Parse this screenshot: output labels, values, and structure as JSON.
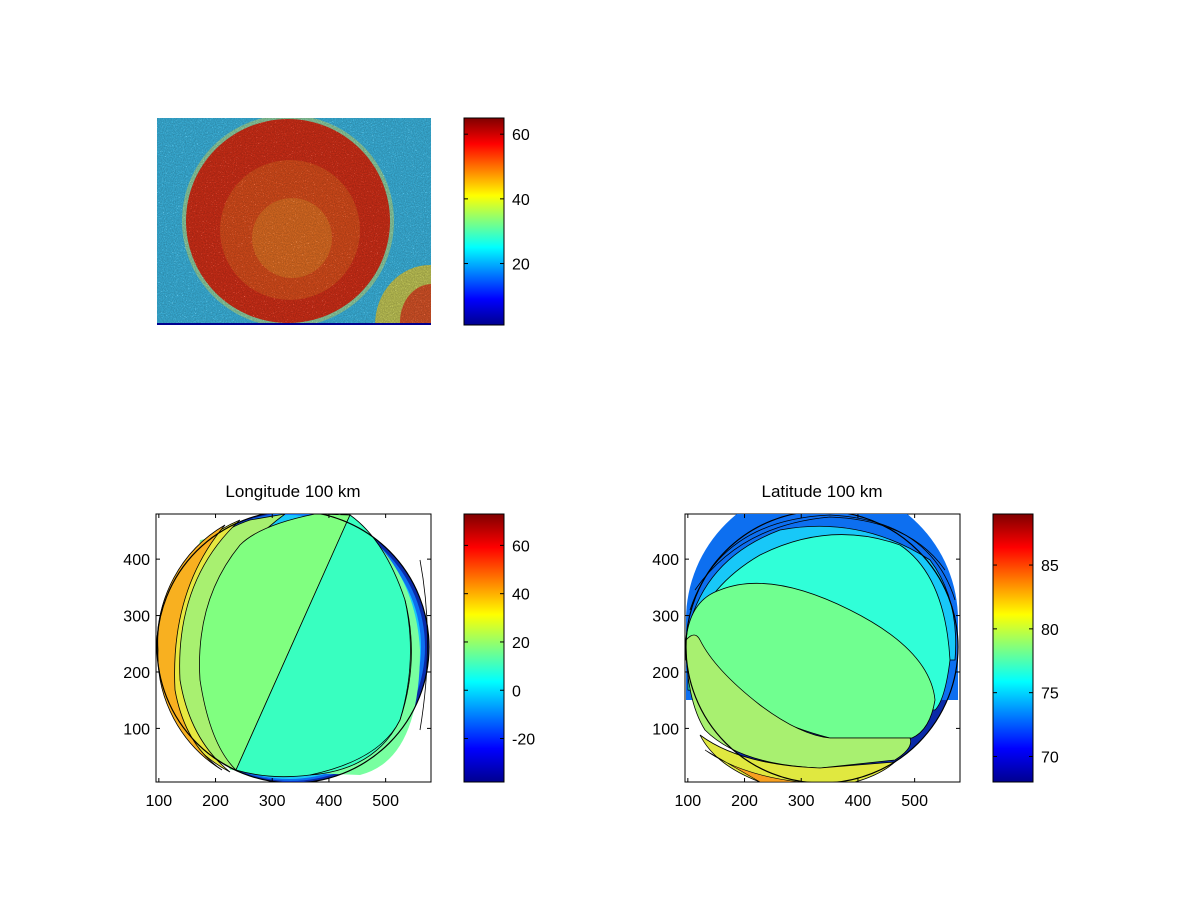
{
  "colors": {
    "background": "#ffffff",
    "colormap": "jet",
    "axes": "#000000"
  },
  "chart_data": [
    {
      "type": "heatmap",
      "name": "raw-image",
      "title": "",
      "xticks": [],
      "yticks": [],
      "colorbar": {
        "clim": [
          1,
          65
        ],
        "ticks": [
          20,
          40,
          60
        ]
      },
      "content": "noisy disk, high values inside a circular region, low background, higher values at bottom-right corner"
    },
    {
      "type": "heatmap",
      "name": "longitude",
      "title": "Longitude 100 km",
      "xlim": [
        95,
        580
      ],
      "ylim": [
        5,
        480
      ],
      "xticks": [
        100,
        200,
        300,
        400,
        500
      ],
      "yticks": [
        100,
        200,
        300,
        400
      ],
      "colorbar": {
        "clim": [
          -38,
          73
        ],
        "ticks": [
          -20,
          0,
          20,
          40,
          60
        ]
      },
      "grid": false
    },
    {
      "type": "heatmap",
      "name": "latitude",
      "title": "Latitude 100 km",
      "xlim": [
        95,
        580
      ],
      "ylim": [
        5,
        480
      ],
      "xticks": [
        100,
        200,
        300,
        400,
        500
      ],
      "yticks": [
        100,
        200,
        300,
        400
      ],
      "colorbar": {
        "clim": [
          68,
          89
        ],
        "ticks": [
          70,
          75,
          80,
          85
        ]
      },
      "grid": false
    }
  ]
}
